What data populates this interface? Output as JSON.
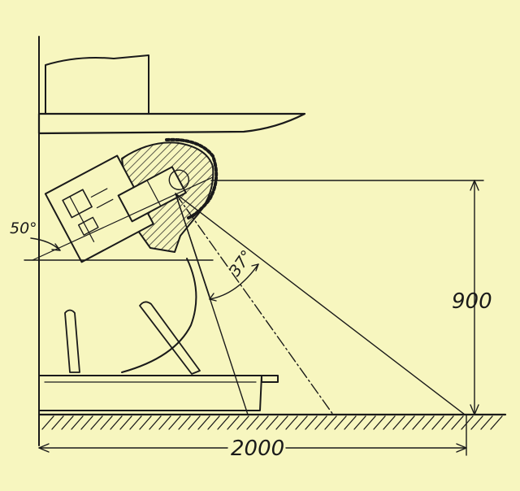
{
  "diagram": {
    "background_color": "#f7f6bf",
    "ink_color": "#1a1a1a",
    "labels": {
      "angle_tilt": "50°",
      "beam_angle": "37°",
      "mount_height": "900",
      "throw_distance": "2000"
    }
  }
}
